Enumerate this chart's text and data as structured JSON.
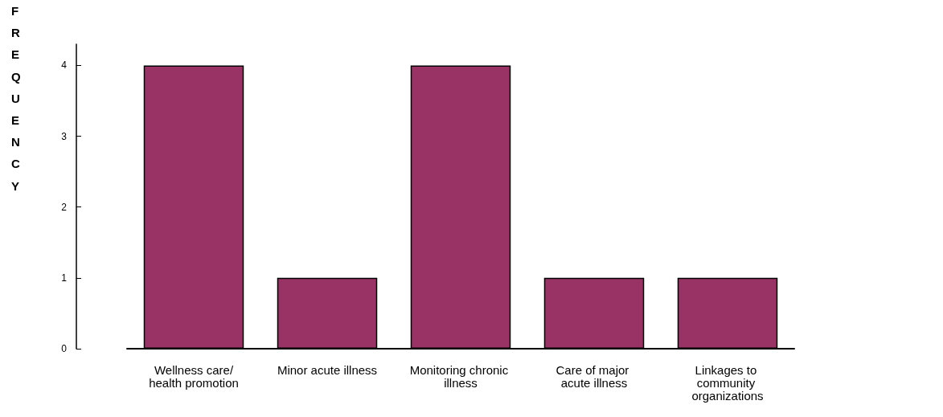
{
  "chart_data": {
    "type": "bar",
    "ylabel": "FREQUENCY",
    "categories": [
      "Wellness care/health promotion",
      "Minor acute illness",
      "Monitoring chronic illness",
      "Care of major acute illness",
      "Linkages to community organizations"
    ],
    "values": [
      4,
      1,
      4,
      1,
      1
    ],
    "color": "#993366",
    "ylim": [
      0,
      4.3
    ],
    "yticks": [
      0,
      1,
      2,
      3,
      4
    ],
    "grid": false
  }
}
